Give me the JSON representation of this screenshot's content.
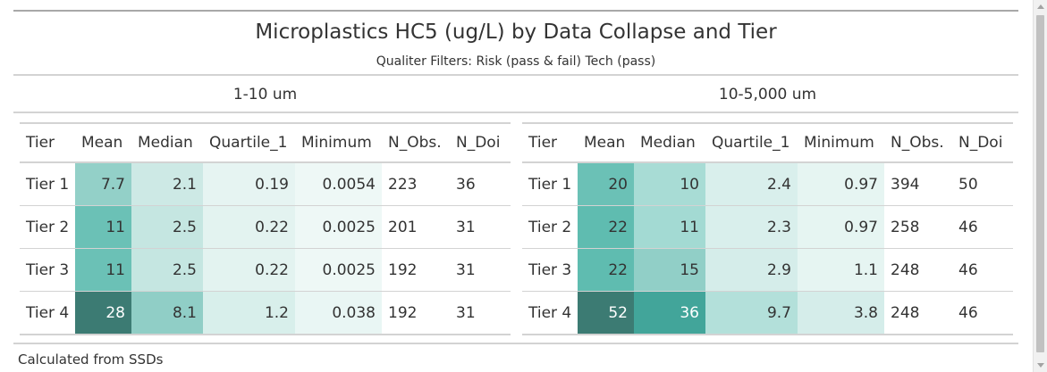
{
  "title": "Microplastics HC5 (ug/L) by Data Collapse and Tier",
  "subtitle": "Qualiter Filters: Risk (pass & fail) Tech (pass)",
  "footnote": "Calculated from SSDs",
  "columns": [
    "Tier",
    "Mean",
    "Median",
    "Quartile_1",
    "Minimum",
    "N_Obs.",
    "N_Doi"
  ],
  "panels": [
    {
      "label": "1-10 um",
      "rows": [
        {
          "tier": "Tier 1",
          "mean": "7.7",
          "median": "2.1",
          "q1": "0.19",
          "min": "0.0054",
          "nobs": "223",
          "ndoi": "36"
        },
        {
          "tier": "Tier 2",
          "mean": "11",
          "median": "2.5",
          "q1": "0.22",
          "min": "0.0025",
          "nobs": "201",
          "ndoi": "31"
        },
        {
          "tier": "Tier 3",
          "mean": "11",
          "median": "2.5",
          "q1": "0.22",
          "min": "0.0025",
          "nobs": "192",
          "ndoi": "31"
        },
        {
          "tier": "Tier 4",
          "mean": "28",
          "median": "8.1",
          "q1": "1.2",
          "min": "0.038",
          "nobs": "192",
          "ndoi": "31"
        }
      ],
      "colors": [
        {
          "mean": "#93d0c8",
          "median": "#cde9e5",
          "q1": "#e6f4f2",
          "min": "#eef8f6"
        },
        {
          "mean": "#6bc1b6",
          "median": "#c5e6e1",
          "q1": "#e3f3f0",
          "min": "#eef8f6"
        },
        {
          "mean": "#6bc1b6",
          "median": "#c5e6e1",
          "q1": "#e3f3f0",
          "min": "#eef8f6"
        },
        {
          "mean": "#3c7b73",
          "median": "#90cec6",
          "q1": "#d8efeb",
          "min": "#e9f6f4"
        }
      ]
    },
    {
      "label": "10-5,000 um",
      "rows": [
        {
          "tier": "Tier 1",
          "mean": "20",
          "median": "10",
          "q1": "2.4",
          "min": "0.97",
          "nobs": "394",
          "ndoi": "50"
        },
        {
          "tier": "Tier 2",
          "mean": "22",
          "median": "11",
          "q1": "2.3",
          "min": "0.97",
          "nobs": "258",
          "ndoi": "46"
        },
        {
          "tier": "Tier 3",
          "mean": "22",
          "median": "15",
          "q1": "2.9",
          "min": "1.1",
          "nobs": "248",
          "ndoi": "46"
        },
        {
          "tier": "Tier 4",
          "mean": "52",
          "median": "36",
          "q1": "9.7",
          "min": "3.8",
          "nobs": "248",
          "ndoi": "46"
        }
      ],
      "colors": [
        {
          "mean": "#6bc1b6",
          "median": "#a8dcd5",
          "q1": "#d9efec",
          "min": "#e6f5f2"
        },
        {
          "mean": "#5fbcb0",
          "median": "#a3dad3",
          "q1": "#d9efec",
          "min": "#e6f5f2"
        },
        {
          "mean": "#5fbcb0",
          "median": "#91cfc7",
          "q1": "#d5edea",
          "min": "#e6f5f2"
        },
        {
          "mean": "#3c7b73",
          "median": "#42a59a",
          "q1": "#b3e0da",
          "min": "#d5edea"
        }
      ]
    }
  ]
}
